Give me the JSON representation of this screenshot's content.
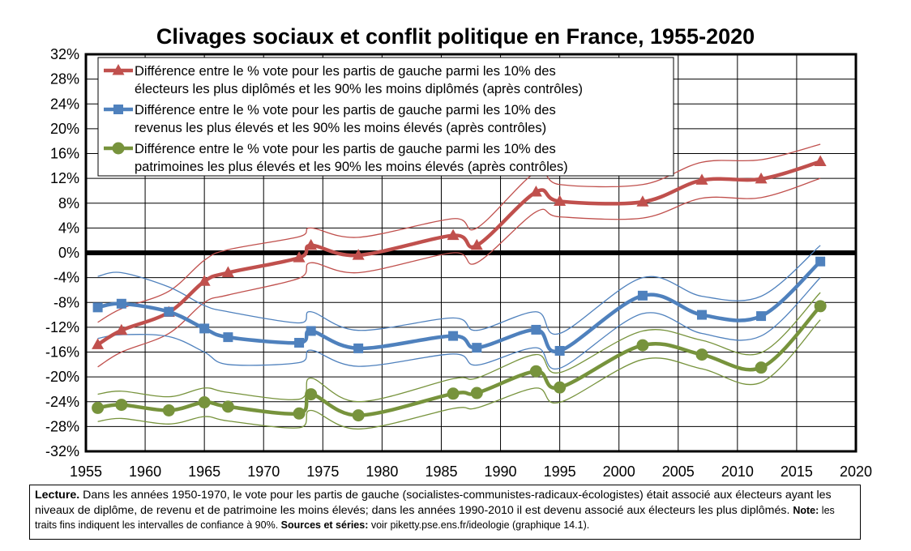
{
  "chart_data": {
    "type": "line",
    "title": "Clivages sociaux et conflit politique en France, 1955-2020",
    "xlim": [
      1955,
      2020
    ],
    "ylim": [
      -32,
      32
    ],
    "x_ticks": [
      "1955",
      "1960",
      "1965",
      "1970",
      "1975",
      "1980",
      "1985",
      "1990",
      "1995",
      "2000",
      "2005",
      "2010",
      "2015",
      "2020"
    ],
    "y_ticks": [
      "32%",
      "28%",
      "24%",
      "20%",
      "16%",
      "12%",
      "8%",
      "4%",
      "0%",
      "-4%",
      "-8%",
      "-12%",
      "-16%",
      "-20%",
      "-24%",
      "-28%",
      "-32%"
    ],
    "grid": true,
    "legend_position": "top-left",
    "series": [
      {
        "name": "Différence entre le % vote pour les partis de gauche parmi les 10% des électeurs les plus diplômés et les 90% les moins diplômés (après contrôles)",
        "legend_lines": [
          "Différence entre le % vote pour les partis de gauche parmi les 10% des",
          "électeurs les plus diplômés et les 90% les moins diplômés (après contrôles)"
        ],
        "color": "#c0504d",
        "marker": "triangle",
        "x": [
          1956,
          1958,
          1962,
          1965,
          1967,
          1973,
          1974,
          1978,
          1986,
          1988,
          1993,
          1995,
          2002,
          2007,
          2012,
          2017
        ],
        "y": [
          -14.8,
          -12.5,
          -9.6,
          -4.6,
          -3.2,
          -0.8,
          1.2,
          -0.4,
          2.8,
          1.2,
          9.8,
          8.3,
          8.2,
          11.7,
          11.9,
          14.7
        ],
        "ci_upper": [
          -11.2,
          -9,
          -6.2,
          -1.2,
          0.5,
          2.6,
          4,
          2.5,
          5.5,
          4,
          13,
          11,
          11,
          14.6,
          15,
          17.5
        ],
        "ci_lower": [
          -18.4,
          -16,
          -13,
          -8,
          -6.8,
          -4.1,
          -1.6,
          -3.2,
          0,
          -1.6,
          6.6,
          5.8,
          5.6,
          8.8,
          8.9,
          12
        ]
      },
      {
        "name": "Différence entre le % vote pour les partis de gauche parmi les 10% des revenus les plus élevés et les 90% les moins élevés (après contrôles)",
        "legend_lines": [
          "Différence entre le % vote pour les partis de gauche parmi les 10% des",
          "revenus les plus élevés et les 90% les moins élevés (après contrôles)"
        ],
        "color": "#4f81bd",
        "marker": "square",
        "x": [
          1956,
          1958,
          1962,
          1965,
          1967,
          1973,
          1974,
          1978,
          1986,
          1988,
          1993,
          1995,
          2002,
          2007,
          2012,
          2017
        ],
        "y": [
          -8.8,
          -8.2,
          -9.5,
          -12.2,
          -13.6,
          -14.5,
          -12.6,
          -15.4,
          -13.4,
          -15.3,
          -12.4,
          -15.8,
          -6.9,
          -10,
          -10.2,
          -1.4
        ],
        "ci_upper": [
          -3.8,
          -3.2,
          -5.5,
          -8.5,
          -9.5,
          -11.3,
          -9.5,
          -12.5,
          -10.5,
          -12.5,
          -9.5,
          -13,
          -4,
          -7,
          -7,
          1.2
        ],
        "ci_lower": [
          -13.8,
          -13.2,
          -13.5,
          -16,
          -18,
          -17.7,
          -15.7,
          -18.3,
          -16.3,
          -18.1,
          -15.3,
          -18.6,
          -9.8,
          -13,
          -13.4,
          -4
        ]
      },
      {
        "name": "Différence entre le % vote pour les partis de gauche parmi les 10% des patrimoines les plus élevés et les 90% les moins élevés (après contrôles)",
        "legend_lines": [
          "Différence entre le % vote pour les partis de gauche parmi les 10% des",
          "patrimoines les plus élevés et les 90% les moins élevés (après contrôles)"
        ],
        "color": "#77933c",
        "marker": "circle",
        "x": [
          1956,
          1958,
          1962,
          1965,
          1967,
          1973,
          1974,
          1978,
          1986,
          1988,
          1993,
          1995,
          2002,
          2007,
          2012,
          2017
        ],
        "y": [
          -25,
          -24.5,
          -25.4,
          -24.1,
          -24.8,
          -25.9,
          -22.8,
          -26.2,
          -22.7,
          -22.6,
          -19.1,
          -21.7,
          -14.9,
          -16.4,
          -18.5,
          -8.6
        ],
        "ci_upper": [
          -22.8,
          -22.3,
          -23.2,
          -21.8,
          -22.5,
          -23.6,
          -20.2,
          -24,
          -20.3,
          -20.2,
          -16.4,
          -19.3,
          -12.6,
          -14.1,
          -16.1,
          -6.4
        ],
        "ci_lower": [
          -27.2,
          -26.7,
          -27.6,
          -26.4,
          -27.1,
          -28.2,
          -25.4,
          -28.4,
          -25.1,
          -25,
          -21.8,
          -24.1,
          -17.2,
          -18.7,
          -20.9,
          -10.8
        ]
      }
    ]
  },
  "caption": {
    "lecture_label": "Lecture.",
    "lecture_text": " Dans les années 1950-1970, le vote pour les partis de gauche (socialistes-communistes-radicaux-écologistes) était associé aux électeurs ayant les niveaux de diplôme, de revenu et de patrimoine les moins élevés; dans les années 1990-2010 il est devenu associé aux électeurs les plus diplômés. ",
    "note_label": "Note:",
    "note_text": " les traits fins indiquent les intervalles de confiance à 90%. ",
    "sources_label": "Sources et séries:",
    "sources_text": " voir piketty.pse.ens.fr/ideologie (graphique 14.1)."
  }
}
